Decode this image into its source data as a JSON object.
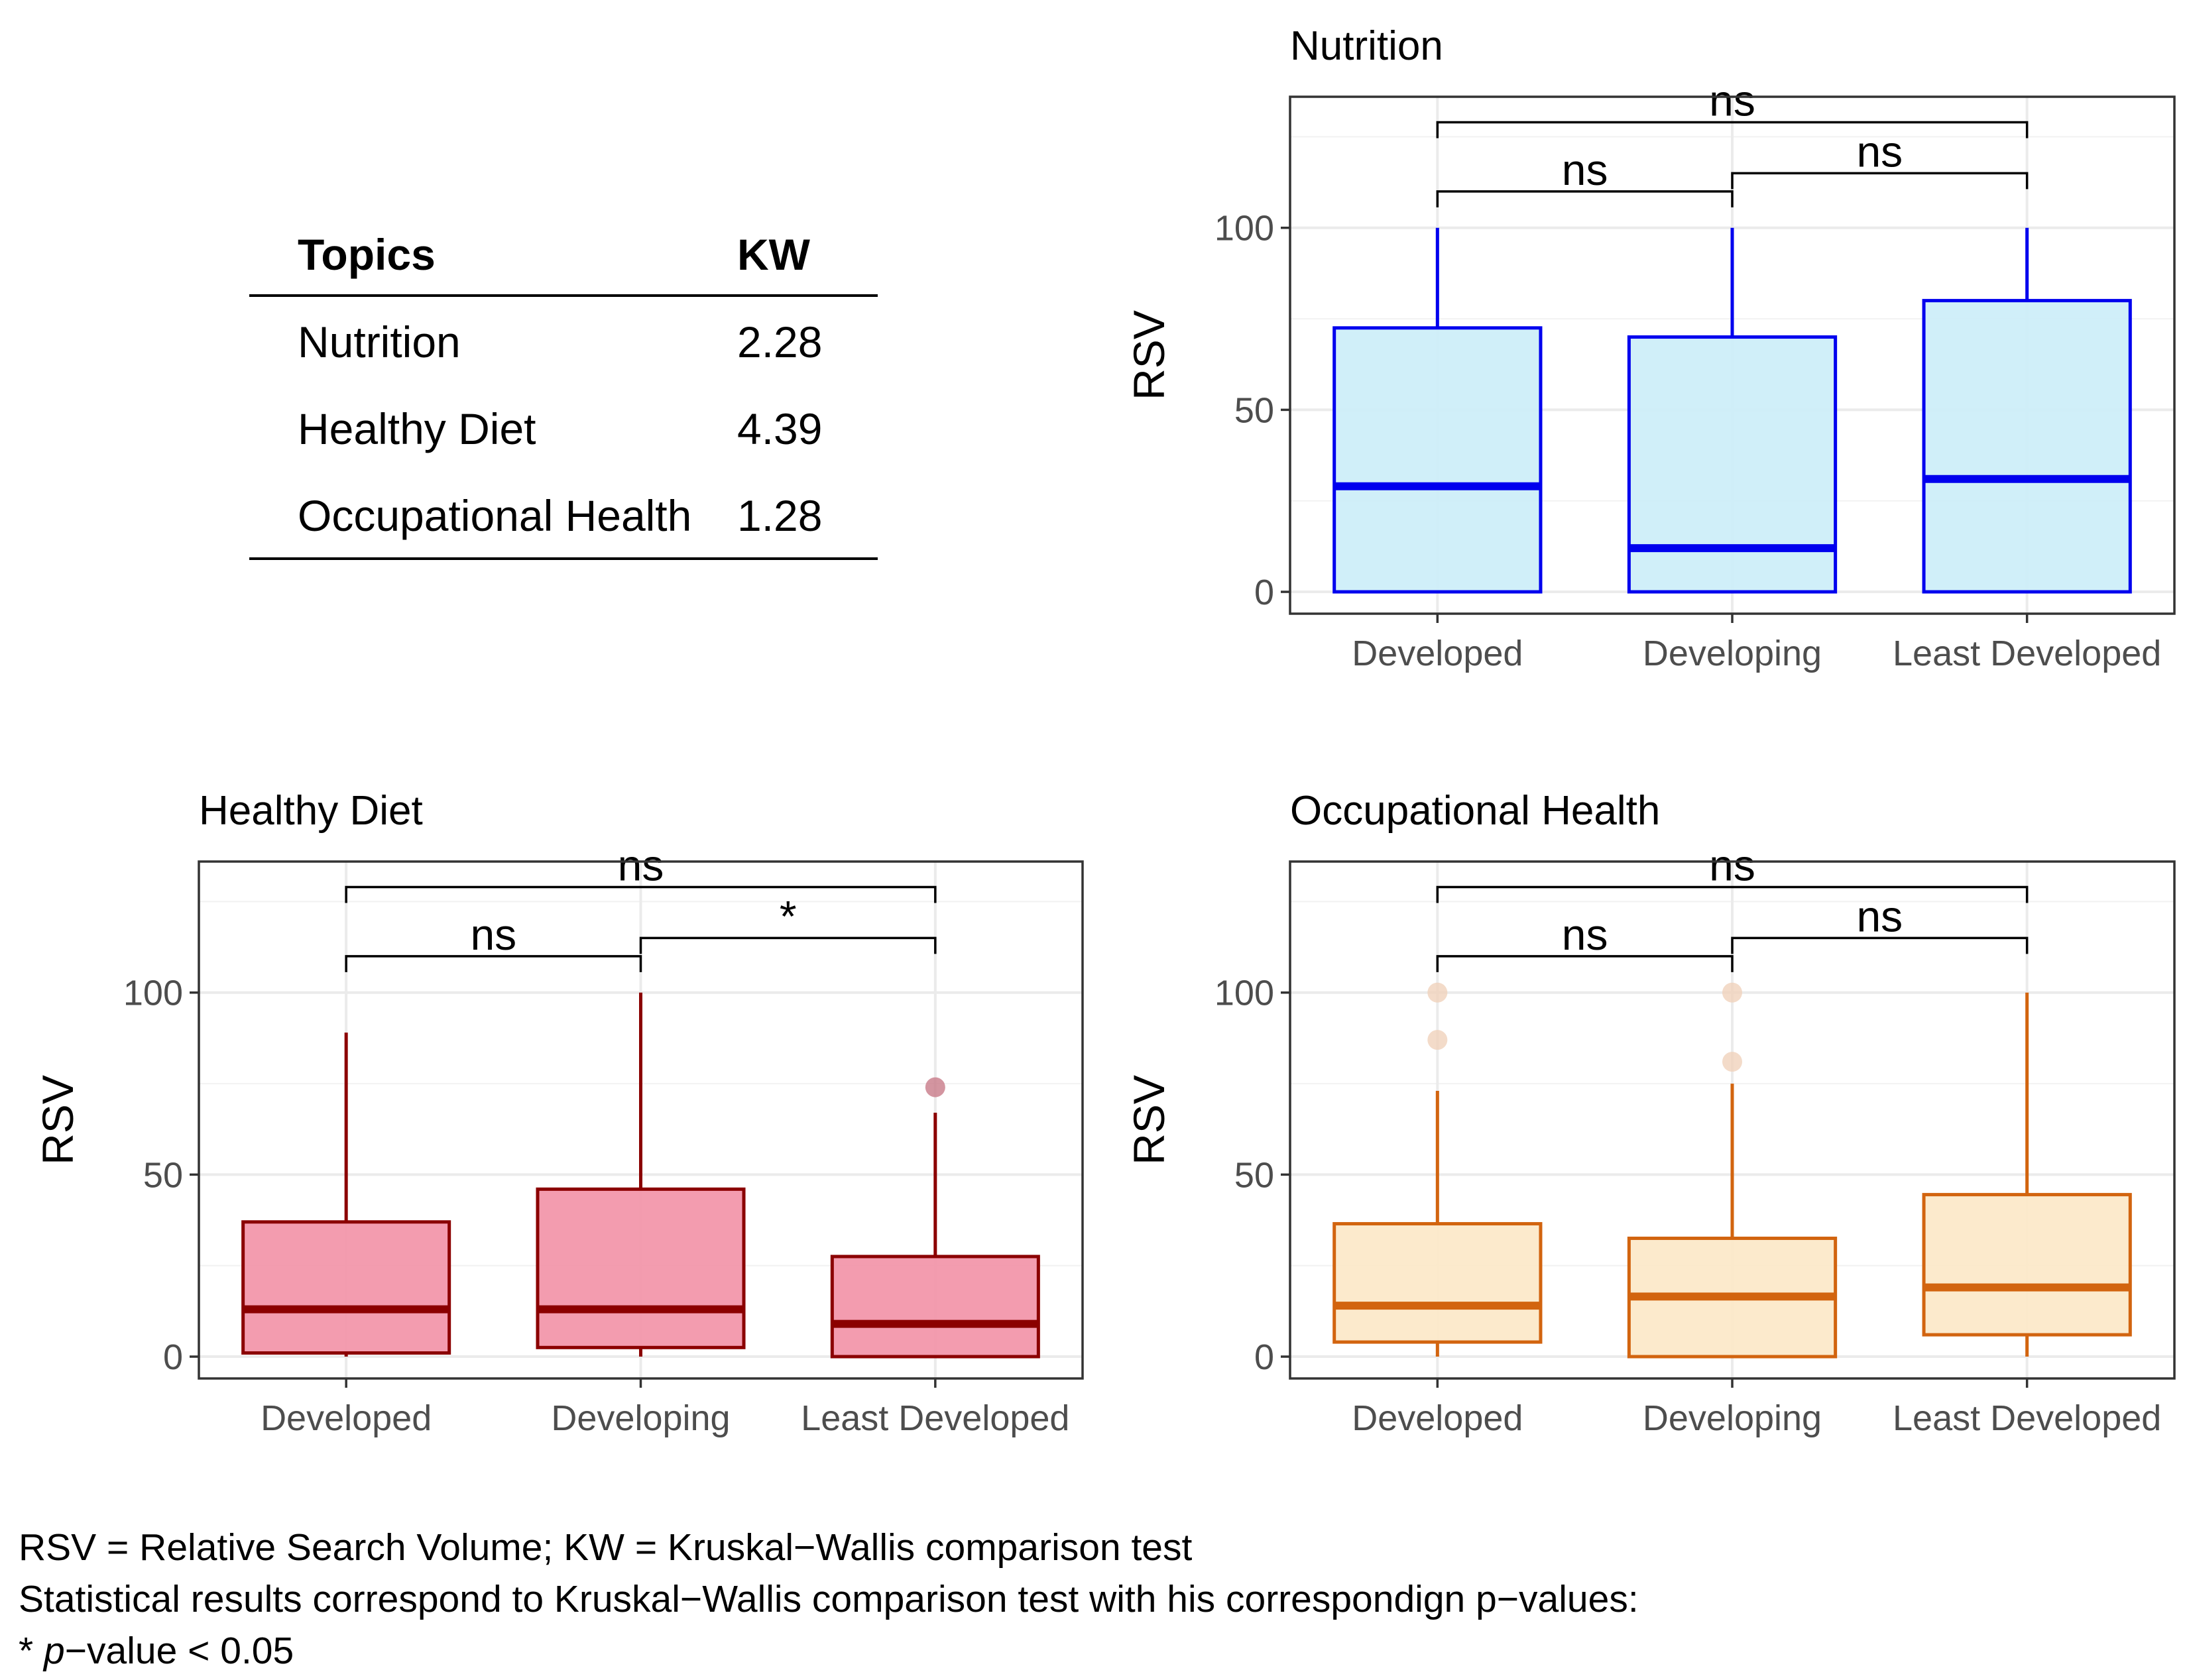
{
  "table": {
    "headers": [
      "Topics",
      "KW"
    ],
    "rows": [
      {
        "topic": "Nutrition",
        "kw": "2.28"
      },
      {
        "topic": "Healthy Diet",
        "kw": "4.39"
      },
      {
        "topic": "Occupational Health",
        "kw": "1.28"
      }
    ]
  },
  "footer": {
    "line1": "RSV = Relative Search Volume; KW = Kruskal−Wallis comparison test",
    "line2": "Statistical results correspond to Kruskal−Wallis comparison test with his correspondign p−values:",
    "line3_prefix": "* ",
    "line3_italic": "p",
    "line3_suffix": "−value < 0.05"
  },
  "chart_data": [
    {
      "type": "boxplot",
      "title": "Nutrition",
      "xlabel": "",
      "ylabel": "RSV",
      "ylim": [
        -6,
        136
      ],
      "yticks": [
        0,
        50,
        100
      ],
      "categories": [
        "Developed",
        "Developing",
        "Least Developed"
      ],
      "colors": {
        "stroke": "#0000ee",
        "fill": "#cceef8",
        "outlier": "#0000ee"
      },
      "boxes": [
        {
          "min": 0,
          "q1": 0,
          "median": 29,
          "q3": 72.5,
          "max": 100,
          "outliers": []
        },
        {
          "min": 0,
          "q1": 0,
          "median": 12,
          "q3": 70,
          "max": 100,
          "outliers": []
        },
        {
          "min": 0,
          "q1": 0,
          "median": 31,
          "q3": 80,
          "max": 100,
          "outliers": []
        }
      ],
      "comparisons": [
        {
          "from": 0,
          "to": 1,
          "label": "ns",
          "y": 110
        },
        {
          "from": 1,
          "to": 2,
          "label": "ns",
          "y": 115
        },
        {
          "from": 0,
          "to": 2,
          "label": "ns",
          "y": 129
        }
      ]
    },
    {
      "type": "boxplot",
      "title": "Healthy Diet",
      "xlabel": "",
      "ylabel": "RSV",
      "ylim": [
        -6,
        136
      ],
      "yticks": [
        0,
        50,
        100
      ],
      "categories": [
        "Developed",
        "Developing",
        "Least Developed"
      ],
      "colors": {
        "stroke": "#8b0000",
        "fill": "#f294a8",
        "outlier": "#c87a88"
      },
      "boxes": [
        {
          "min": 0,
          "q1": 1,
          "median": 13,
          "q3": 37,
          "max": 89,
          "outliers": []
        },
        {
          "min": 0,
          "q1": 2.5,
          "median": 13,
          "q3": 46,
          "max": 100,
          "outliers": []
        },
        {
          "min": 0,
          "q1": 0,
          "median": 9,
          "q3": 27.5,
          "max": 67,
          "outliers": [
            74
          ]
        }
      ],
      "comparisons": [
        {
          "from": 0,
          "to": 1,
          "label": "ns",
          "y": 110
        },
        {
          "from": 1,
          "to": 2,
          "label": "*",
          "y": 115
        },
        {
          "from": 0,
          "to": 2,
          "label": "ns",
          "y": 129
        }
      ]
    },
    {
      "type": "boxplot",
      "title": "Occupational Health",
      "xlabel": "",
      "ylabel": "RSV",
      "ylim": [
        -6,
        136
      ],
      "yticks": [
        0,
        50,
        100
      ],
      "categories": [
        "Developed",
        "Developing",
        "Least Developed"
      ],
      "colors": {
        "stroke": "#d2640f",
        "fill": "#fce8c8",
        "outlier": "#f0d2bc"
      },
      "boxes": [
        {
          "min": 0,
          "q1": 4,
          "median": 14,
          "q3": 36.5,
          "max": 73,
          "outliers": [
            87,
            100
          ]
        },
        {
          "min": 0,
          "q1": 0,
          "median": 16.5,
          "q3": 32.5,
          "max": 75,
          "outliers": [
            81,
            100
          ]
        },
        {
          "min": 0,
          "q1": 6,
          "median": 19,
          "q3": 44.5,
          "max": 100,
          "outliers": []
        }
      ],
      "comparisons": [
        {
          "from": 0,
          "to": 1,
          "label": "ns",
          "y": 110
        },
        {
          "from": 1,
          "to": 2,
          "label": "ns",
          "y": 115
        },
        {
          "from": 0,
          "to": 2,
          "label": "ns",
          "y": 129
        }
      ]
    }
  ]
}
